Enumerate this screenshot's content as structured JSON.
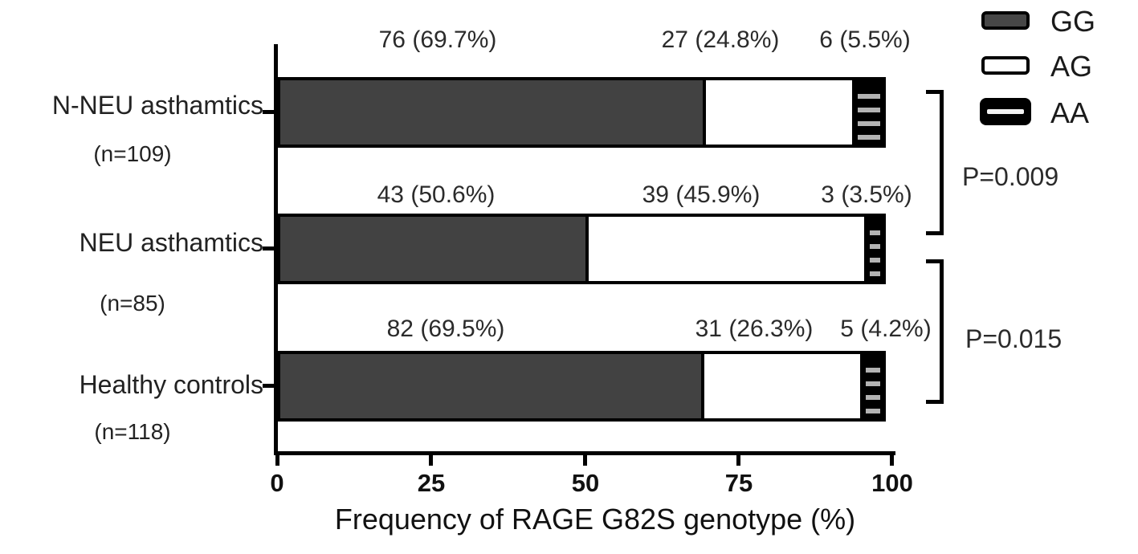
{
  "chart_data": {
    "type": "bar",
    "orientation": "horizontal",
    "stacked": true,
    "xlabel": "Frequency of RAGE G82S genotype (%)",
    "xlim": [
      0,
      100
    ],
    "xticks": [
      "0",
      "25",
      "50",
      "75",
      "100"
    ],
    "grid": false,
    "legend_position": "top-right",
    "legend": [
      "GG",
      "AG",
      "AA"
    ],
    "series_keys": [
      "GG",
      "AG",
      "AA"
    ],
    "categories": [
      {
        "label": "N-NEU asthamtics",
        "n_label": "(n=109)",
        "counts": {
          "GG": 76,
          "AG": 27,
          "AA": 6
        },
        "percents": {
          "GG": 69.7,
          "AG": 24.8,
          "AA": 5.5
        },
        "labels": [
          "76 (69.7%)",
          "27 (24.8%)",
          "6 (5.5%)"
        ]
      },
      {
        "label": "NEU asthamtics",
        "n_label": "(n=85)",
        "counts": {
          "GG": 43,
          "AG": 39,
          "AA": 3
        },
        "percents": {
          "GG": 50.6,
          "AG": 45.9,
          "AA": 3.5
        },
        "labels": [
          "43 (50.6%)",
          "39 (45.9%)",
          "3 (3.5%)"
        ]
      },
      {
        "label": "Healthy controls",
        "n_label": "(n=118)",
        "counts": {
          "GG": 82,
          "AG": 31,
          "AA": 5
        },
        "percents": {
          "GG": 69.5,
          "AG": 26.3,
          "AA": 4.2
        },
        "labels": [
          "82 (69.5%)",
          "31 (26.3%)",
          "5 (4.2%)"
        ]
      }
    ],
    "annotations": [
      {
        "label": "P=0.009",
        "between": [
          "N-NEU asthamtics",
          "NEU asthamtics"
        ]
      },
      {
        "label": "P=0.015",
        "between": [
          "NEU asthamtics",
          "Healthy controls"
        ]
      }
    ],
    "colors": {
      "GG": "#424242",
      "AG": "#ffffff",
      "AA": "#000000",
      "AA_hatch": "light-gray-horizontal-stripes",
      "axis": "#000000"
    }
  }
}
